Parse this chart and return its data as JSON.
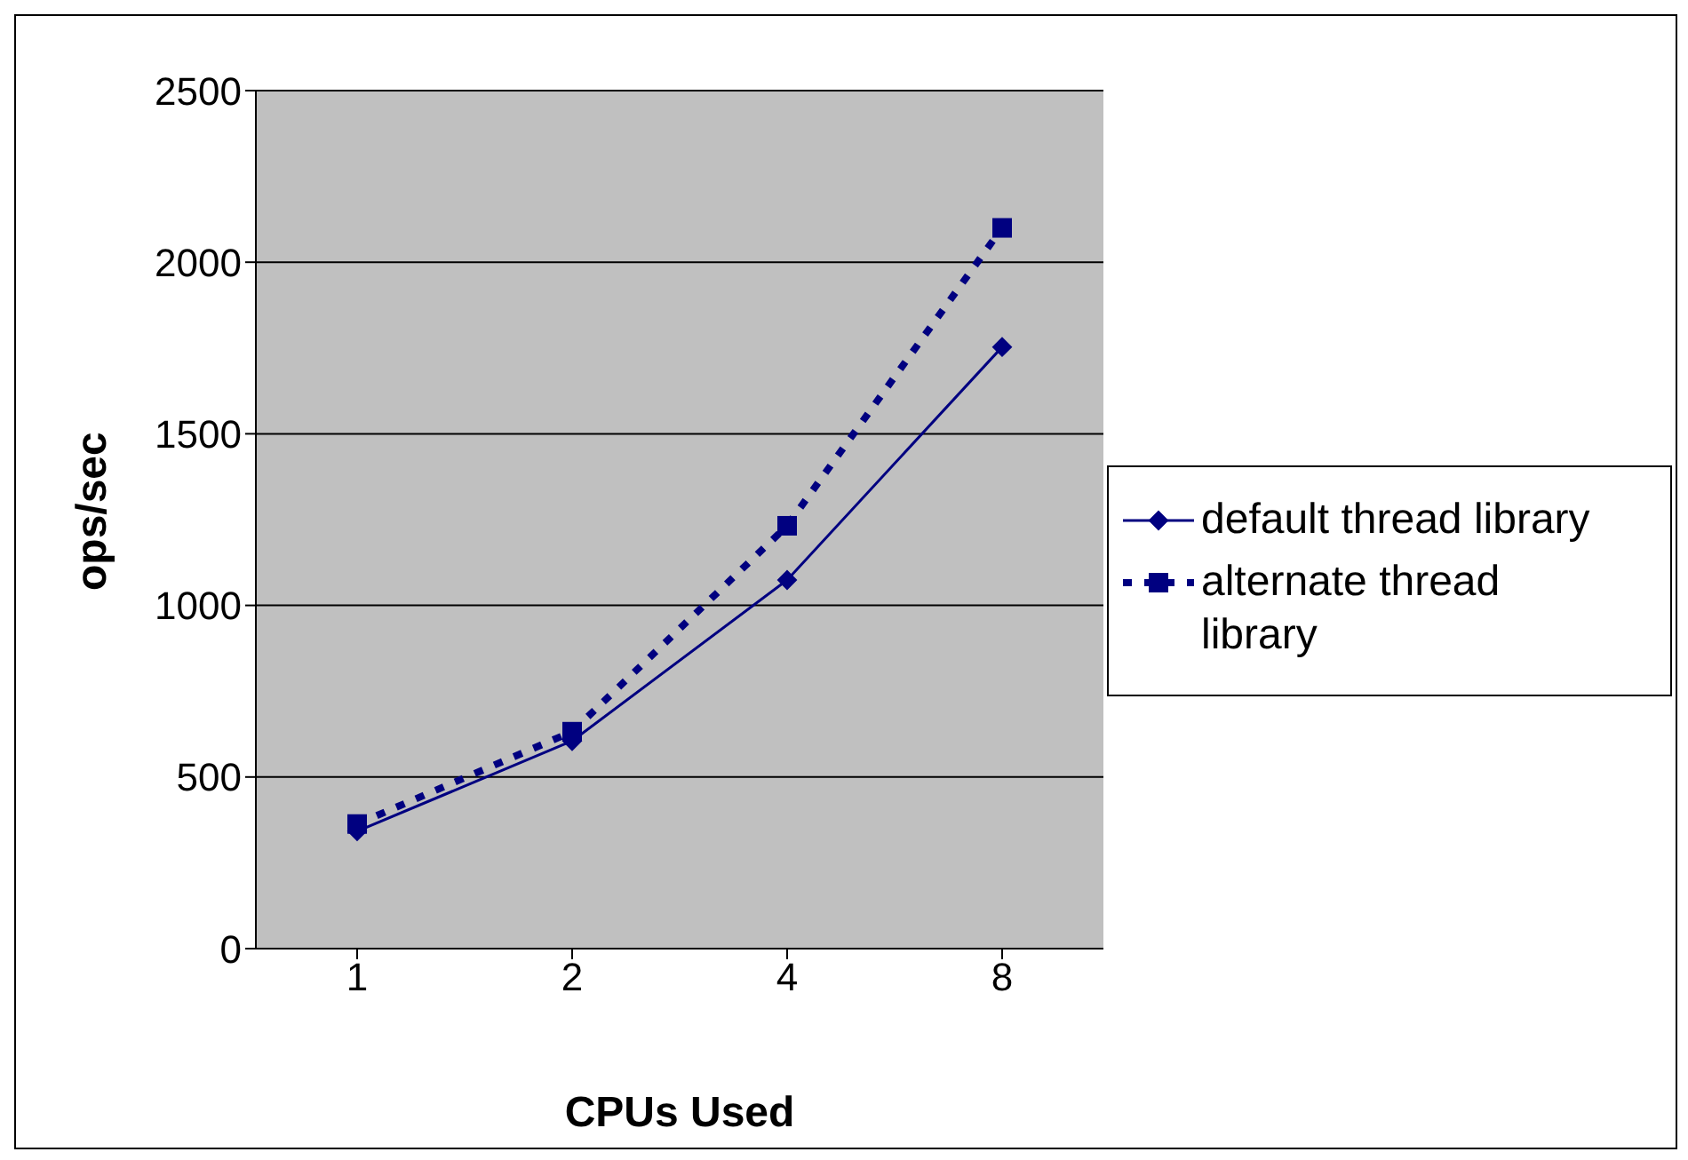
{
  "chart_data": {
    "type": "line",
    "xlabel": "CPUs Used",
    "ylabel": "ops/sec",
    "categories": [
      "1",
      "2",
      "4",
      "8"
    ],
    "series": [
      {
        "name": "default thread library",
        "color": "#000080",
        "values": [
          342,
          605,
          1074,
          1753
        ],
        "marker": "diamond",
        "line_style": "solid"
      },
      {
        "name": "alternate thread library",
        "color": "#000080",
        "values": [
          363,
          632,
          1232,
          2100
        ],
        "marker": "square",
        "line_style": "dotted"
      }
    ],
    "ylim": [
      0,
      2500
    ],
    "yticks": [
      0,
      500,
      1000,
      1500,
      2000,
      2500
    ],
    "grid": "y",
    "legend": "right"
  }
}
